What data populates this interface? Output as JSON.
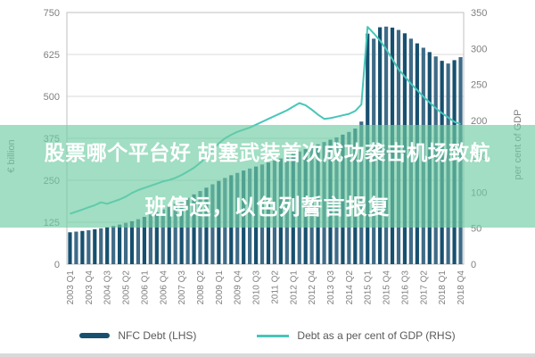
{
  "title_overlay": {
    "line1": "股票哪个平台好 胡塞武装首次成功袭击机场致航",
    "line2": "班停运，以色列誓言报复"
  },
  "legend": [
    {
      "label": "NFC Debt (LHS)",
      "type": "bar"
    },
    {
      "label": "Debt as a per cent of GDP (RHS)",
      "type": "line"
    }
  ],
  "axes": {
    "left_title": "€ billion",
    "right_title": "per cent of GDP",
    "left_ticks": [
      750,
      625,
      500,
      375,
      250,
      125,
      0
    ],
    "right_ticks": [
      350,
      300,
      250,
      200,
      150,
      100,
      50,
      0
    ]
  },
  "colors": {
    "bar_navy": "#17506f",
    "bar_navy_alt": "#3f6b87",
    "line_teal": "#47c6b9",
    "band_green": "#6ecda3",
    "grid_gray": "#d9d9d9",
    "plot_border": "#bfbfbf",
    "text_gray": "#7f7f7f",
    "legend_text": "#595959",
    "overlay_text": "#ffffff"
  },
  "chart_data": {
    "type": "bar+line combo",
    "x_start": "2003 Q1",
    "x_end": "2018 Q4",
    "frequency": "quarterly",
    "x_tick_labels_shown": [
      "2003 Q1",
      "2003 Q4",
      "2004 Q3",
      "2005 Q2",
      "2006 Q1",
      "2006 Q4",
      "2007 Q3",
      "2008 Q2",
      "2009 Q1",
      "2009 Q4",
      "2010 Q3",
      "2011 Q2",
      "2012 Q1",
      "2012 Q4",
      "2013 Q3",
      "2014 Q2",
      "2015 Q1",
      "2015 Q4",
      "2016 Q3",
      "2017 Q2",
      "2018 Q1",
      "2018 Q4"
    ],
    "label_every_n": 3,
    "left_axis_range": [
      0,
      750
    ],
    "right_axis_range": [
      0,
      350
    ],
    "grid": "horizontal",
    "legend_position": "bottom",
    "series": [
      {
        "name": "NFC Debt (LHS)",
        "type": "bar",
        "axis": "left",
        "unit": "€ billion",
        "values": [
          95,
          97,
          99,
          101,
          104,
          107,
          110,
          114,
          118,
          123,
          128,
          134,
          141,
          148,
          155,
          163,
          171,
          180,
          189,
          198,
          208,
          218,
          228,
          238,
          248,
          257,
          265,
          272,
          279,
          285,
          291,
          297,
          303,
          309,
          315,
          322,
          329,
          336,
          343,
          350,
          357,
          364,
          371,
          378,
          386,
          394,
          404,
          425,
          687,
          672,
          706,
          708,
          705,
          698,
          688,
          672,
          658,
          645,
          632,
          619,
          606,
          598,
          608,
          617
        ]
      },
      {
        "name": "Debt as a per cent of GDP (RHS)",
        "type": "line",
        "axis": "right",
        "unit": "per cent of GDP",
        "values": [
          70,
          73,
          76,
          79,
          82,
          86,
          84,
          87,
          90,
          94,
          99,
          103,
          106,
          109,
          112,
          115,
          117,
          120,
          124,
          129,
          134,
          141,
          149,
          159,
          168,
          175,
          180,
          184,
          187,
          190,
          194,
          198,
          202,
          206,
          210,
          214,
          219,
          224,
          221,
          215,
          208,
          202,
          203,
          205,
          207,
          209,
          213,
          222,
          330,
          321,
          311,
          299,
          285,
          271,
          261,
          251,
          242,
          233,
          225,
          217,
          210,
          204,
          198,
          195
        ]
      }
    ]
  }
}
